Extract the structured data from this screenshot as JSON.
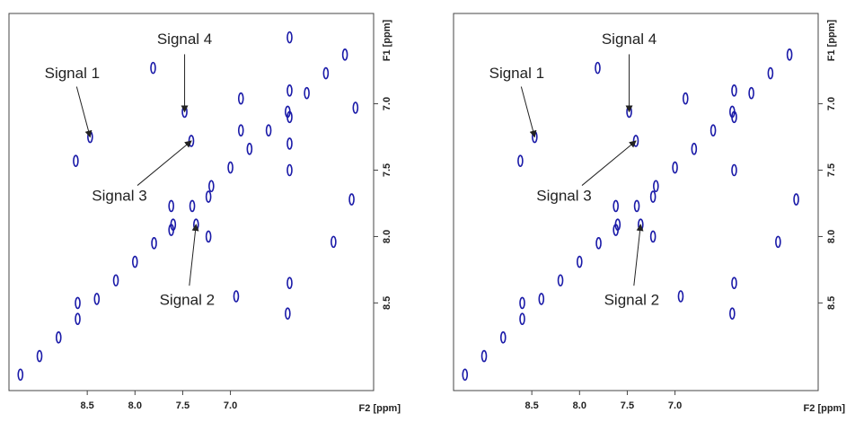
{
  "chart_data": [
    {
      "type": "scatter",
      "color": "#1a1aa8",
      "xlabel": "F2 [ppm]",
      "ylabel": "F1 [ppm]",
      "xlim": [
        9.32,
        5.5
      ],
      "ylim": [
        9.16,
        6.32
      ],
      "xticks": [
        8.5,
        {
          "value": 8,
          "label": "8.0"
        },
        7.5,
        {
          "value": 7,
          "label": "7.0"
        }
      ],
      "yticks": [
        {
          "value": 7,
          "label": "7.0"
        },
        7.5,
        {
          "value": 8,
          "label": "8.0"
        },
        8.5
      ],
      "x": [
        9.2,
        9.0,
        8.8,
        8.6,
        8.4,
        8.2,
        8.0,
        7.8,
        7.6,
        7.4,
        7.2,
        7.0,
        6.8,
        6.6,
        6.4,
        6.2,
        6.0,
        5.8,
        8.47,
        8.62,
        7.48,
        7.41,
        7.36,
        6.38,
        6.38,
        6.38,
        6.38,
        6.38,
        6.38,
        7.23,
        7.23,
        7.62,
        7.62,
        6.89,
        6.89,
        7.81,
        5.69,
        5.92,
        5.73,
        8.6,
        6.94,
        6.4
      ],
      "values": [
        9.04,
        8.9,
        8.76,
        8.62,
        8.47,
        8.33,
        8.19,
        8.05,
        7.91,
        7.77,
        7.62,
        7.48,
        7.34,
        7.2,
        7.06,
        6.92,
        6.77,
        6.63,
        7.25,
        7.43,
        7.06,
        7.28,
        7.91,
        6.5,
        6.9,
        7.1,
        7.3,
        7.5,
        8.35,
        7.7,
        8.0,
        7.77,
        7.95,
        6.96,
        7.2,
        6.73,
        7.03,
        8.04,
        7.72,
        8.5,
        8.45,
        8.58
      ],
      "annotations": [
        {
          "text": "Signal 1",
          "x": 8.47,
          "y": 7.25
        },
        {
          "text": "Signal 2",
          "x": 7.36,
          "y": 7.91
        },
        {
          "text": "Signal 3",
          "x": 7.41,
          "y": 7.28
        },
        {
          "text": "Signal 4",
          "x": 7.48,
          "y": 7.06
        }
      ]
    },
    {
      "type": "scatter",
      "color": "#1a1aa8",
      "xlabel": "F2 [ppm]",
      "ylabel": "F1 [ppm]",
      "xlim": [
        9.32,
        5.5
      ],
      "ylim": [
        9.16,
        6.32
      ],
      "xticks": [
        8.5,
        {
          "value": 8,
          "label": "8.0"
        },
        7.5,
        {
          "value": 7,
          "label": "7.0"
        }
      ],
      "yticks": [
        {
          "value": 7,
          "label": "7.0"
        },
        7.5,
        {
          "value": 8,
          "label": "8.0"
        },
        8.5
      ],
      "x": [
        9.2,
        9.0,
        8.8,
        8.6,
        8.4,
        8.2,
        8.0,
        7.8,
        7.6,
        7.4,
        7.2,
        7.0,
        6.8,
        6.6,
        6.4,
        6.2,
        6.0,
        5.8,
        8.47,
        8.62,
        7.48,
        7.41,
        7.36,
        6.38,
        6.38,
        6.38,
        6.38,
        7.23,
        7.23,
        7.62,
        7.62,
        6.89,
        7.81,
        5.92,
        5.73,
        8.6,
        6.94,
        6.4
      ],
      "values": [
        9.04,
        8.9,
        8.76,
        8.62,
        8.47,
        8.33,
        8.19,
        8.05,
        7.91,
        7.77,
        7.62,
        7.48,
        7.34,
        7.2,
        7.06,
        6.92,
        6.77,
        6.63,
        7.25,
        7.43,
        7.06,
        7.28,
        7.91,
        6.9,
        7.1,
        7.5,
        8.35,
        7.7,
        8.0,
        7.77,
        7.95,
        6.96,
        6.73,
        8.04,
        7.72,
        8.5,
        8.45,
        8.58
      ],
      "annotations": [
        {
          "text": "Signal 1",
          "x": 8.47,
          "y": 7.25
        },
        {
          "text": "Signal 2",
          "x": 7.36,
          "y": 7.91
        },
        {
          "text": "Signal 3",
          "x": 7.41,
          "y": 7.28
        },
        {
          "text": "Signal 4",
          "x": 7.48,
          "y": 7.06
        }
      ]
    }
  ]
}
